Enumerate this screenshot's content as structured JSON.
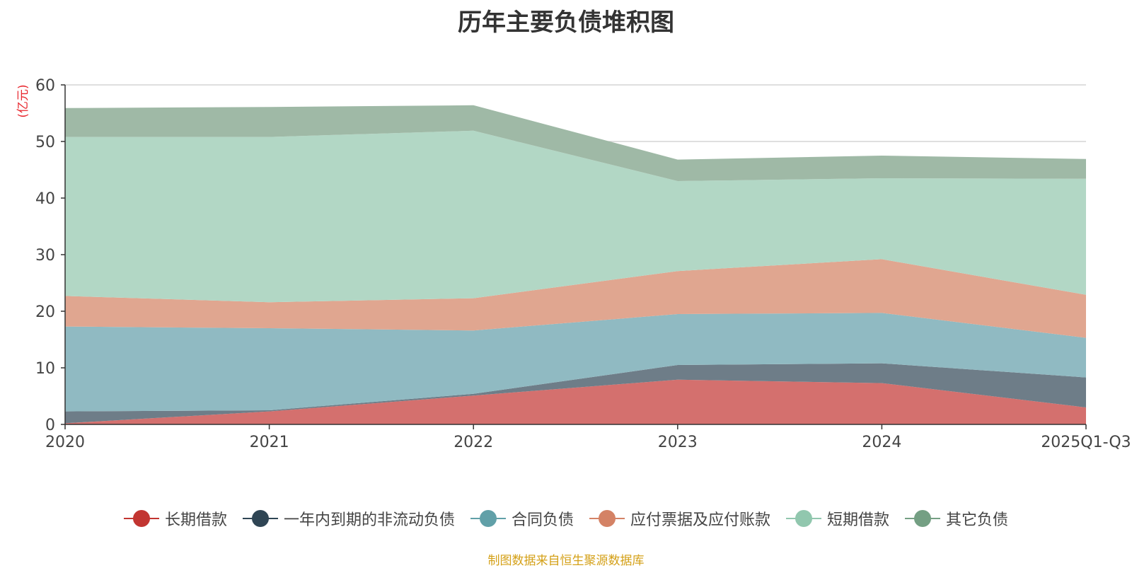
{
  "title": "历年主要负债堆积图",
  "source_note": "制图数据来自恒生聚源数据库",
  "chart_data": {
    "type": "area",
    "stacked": true,
    "title": "历年主要负债堆积图",
    "ylabel": "(亿元)",
    "ylabel_color": "#e8262d",
    "xlabel": "",
    "categories": [
      "2020",
      "2021",
      "2022",
      "2023",
      "2024",
      "2025Q1-Q3"
    ],
    "ylim": [
      0,
      60
    ],
    "yticks": [
      0,
      10,
      20,
      30,
      40,
      50,
      60
    ],
    "grid": true,
    "legend_position": "bottom",
    "series": [
      {
        "name": "长期借款",
        "color": "#c23531",
        "fill": "#d4706e",
        "values": [
          0.2,
          2.3,
          5.1,
          7.9,
          7.3,
          3.0
        ]
      },
      {
        "name": "一年内到期的非流动负债",
        "color": "#2f4554",
        "fill": "#6e7d88",
        "values": [
          2.1,
          0.2,
          0.3,
          2.6,
          3.5,
          5.3
        ]
      },
      {
        "name": "合同负债",
        "color": "#61a0a8",
        "fill": "#90bac2",
        "values": [
          15.0,
          14.5,
          11.2,
          9.0,
          8.9,
          7.0
        ]
      },
      {
        "name": "应付票据及应付账款",
        "color": "#d48265",
        "fill": "#e0a690",
        "values": [
          5.4,
          4.6,
          5.7,
          7.6,
          9.5,
          7.6
        ]
      },
      {
        "name": "短期借款",
        "color": "#91c7ae",
        "fill": "#b2d7c5",
        "values": [
          28.1,
          29.2,
          29.6,
          15.9,
          14.3,
          20.5
        ]
      },
      {
        "name": "其它负债",
        "color": "#749f83",
        "fill": "#9fb9a6",
        "values": [
          5.1,
          5.3,
          4.5,
          3.8,
          4.0,
          3.5
        ]
      }
    ]
  }
}
